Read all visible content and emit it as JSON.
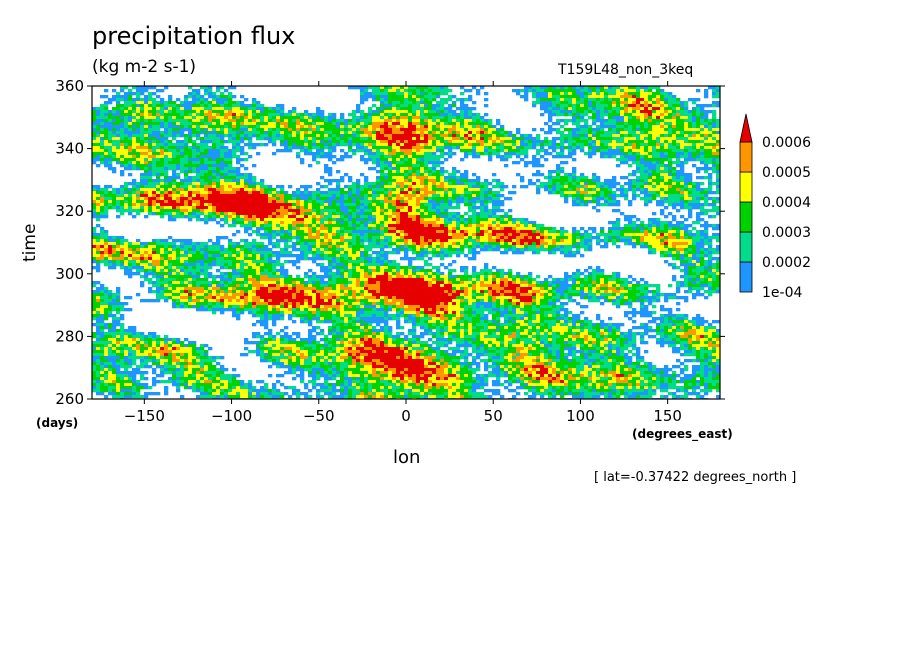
{
  "title": "precipitation flux",
  "units": "(kg m-2 s-1)",
  "run_label": "T159L48_non_3keq",
  "note": "[ lat=-0.37422 degrees_north ]",
  "chart_data": {
    "type": "heatmap",
    "title": "precipitation flux",
    "xlabel": "lon",
    "x_unit": "(degrees_east)",
    "ylabel": "time",
    "y_unit": "(days)",
    "xlim": [
      -180,
      180
    ],
    "ylim": [
      260,
      360
    ],
    "x_ticks": [
      -150,
      -100,
      -50,
      0,
      50,
      100,
      150
    ],
    "y_ticks": [
      260,
      280,
      300,
      320,
      340,
      360
    ],
    "colorbar": {
      "levels": [
        "1e-04",
        "0.0002",
        "0.0003",
        "0.0004",
        "0.0005",
        "0.0006"
      ],
      "colors": [
        "#1e96ff",
        "#00dc8c",
        "#00d200",
        "#ffff00",
        "#ff9600",
        "#e60000"
      ],
      "above_max_color": "#e60000",
      "orientation": "vertical",
      "placement": "right"
    }
  }
}
